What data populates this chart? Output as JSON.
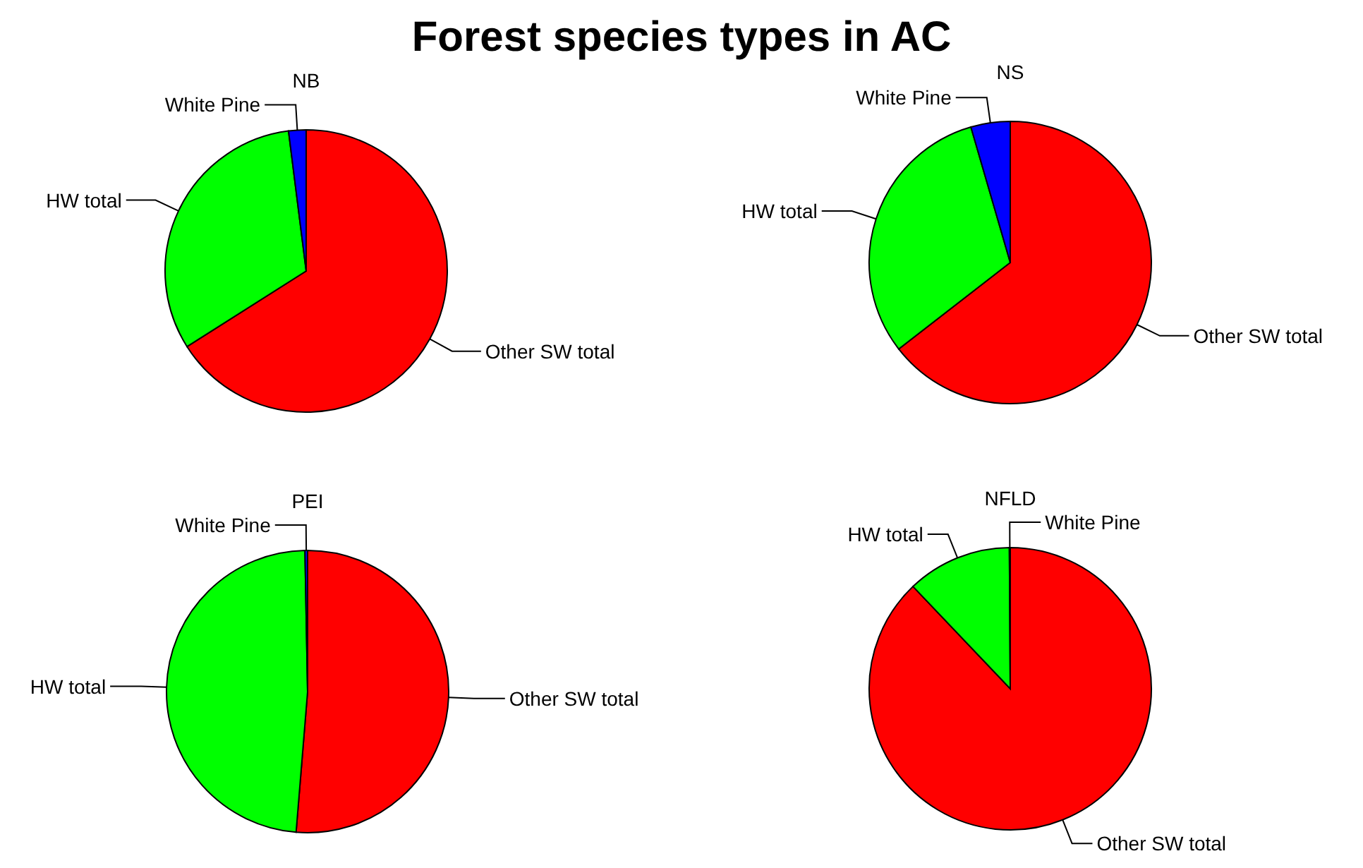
{
  "chart_data": [
    {
      "type": "pie",
      "title": "Forest species types in AC",
      "subtitle": "NB",
      "categories": [
        "Other SW total",
        "HW total",
        "White Pine"
      ],
      "values": [
        66,
        32,
        2
      ],
      "colors": [
        "#ff0000",
        "#00ff00",
        "#0000ff"
      ]
    },
    {
      "type": "pie",
      "subtitle": "NS",
      "categories": [
        "Other SW total",
        "HW total",
        "White Pine"
      ],
      "values": [
        64.5,
        31,
        4.5
      ],
      "colors": [
        "#ff0000",
        "#00ff00",
        "#0000ff"
      ]
    },
    {
      "type": "pie",
      "subtitle": "PEI",
      "categories": [
        "Other SW total",
        "HW total",
        "White Pine"
      ],
      "values": [
        51.3,
        48.4,
        0.3
      ],
      "colors": [
        "#ff0000",
        "#00ff00",
        "#0000ff"
      ]
    },
    {
      "type": "pie",
      "subtitle": "NFLD",
      "categories": [
        "Other SW total",
        "HW total",
        "White Pine"
      ],
      "values": [
        87.9,
        12,
        0.1
      ],
      "colors": [
        "#ff0000",
        "#00ff00",
        "#0000ff"
      ]
    }
  ]
}
